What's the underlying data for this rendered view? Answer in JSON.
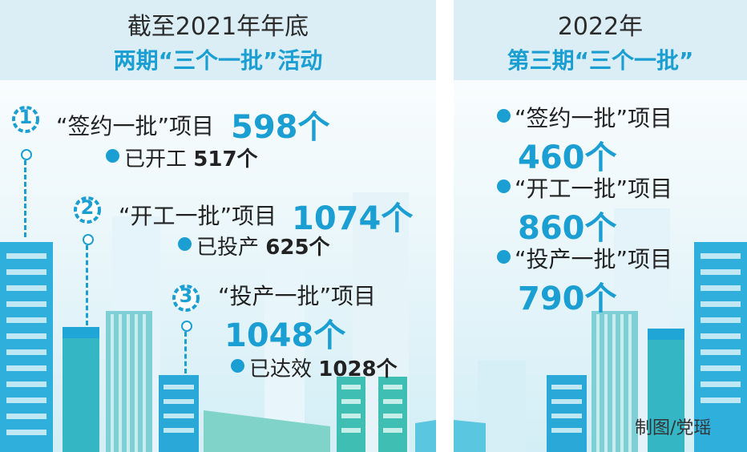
{
  "left": {
    "title": "截至2021年年底",
    "subtitle": "两期“三个一批”活动",
    "items": [
      {
        "num": "1",
        "label": "“签约一批”项目",
        "value": "598个",
        "sub_label": "已开工",
        "sub_value": "517个"
      },
      {
        "num": "2",
        "label": "“开工一批”项目",
        "value": "1074个",
        "sub_label": "已投产",
        "sub_value": "625个"
      },
      {
        "num": "3",
        "label": "“投产一批”项目",
        "value": "1048个",
        "sub_label": "已达效",
        "sub_value": "1028个"
      }
    ]
  },
  "right": {
    "title": "2022年",
    "subtitle": "第三期“三个一批”",
    "items": [
      {
        "label": "“签约一批”项目",
        "value": "460个"
      },
      {
        "label": "“开工一批”项目",
        "value": "860个"
      },
      {
        "label": "“投产一批”项目",
        "value": "790个"
      }
    ]
  },
  "credit": "制图/党瑶",
  "colors": {
    "accent": "#1b9fd3",
    "header_bg": "#dceef5",
    "text": "#222222"
  }
}
